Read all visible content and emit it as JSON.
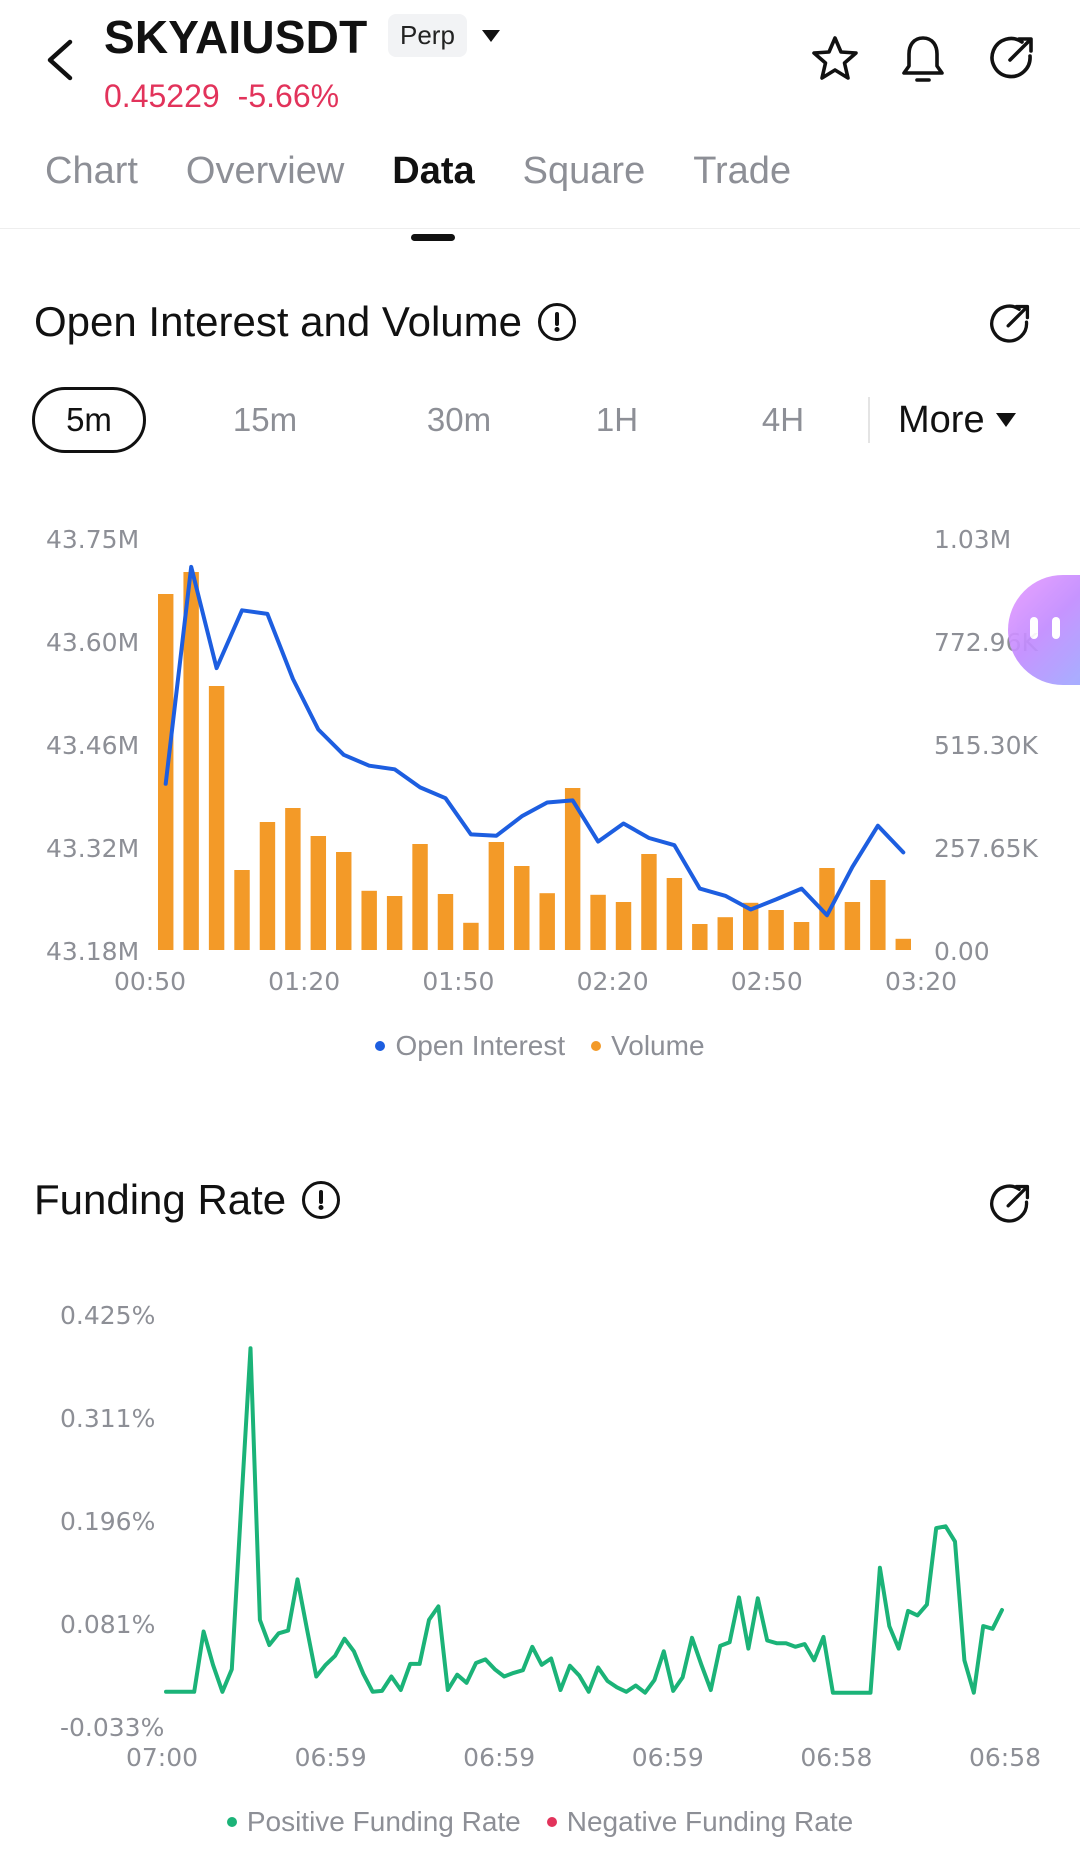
{
  "header": {
    "back_icon": "chevron-left-icon",
    "symbol": "SKYAIUSDT",
    "badge": "Perp",
    "badge_dropdown_icon": "caret-down-icon",
    "price": "0.45229",
    "change": "-5.66%",
    "price_color": "#e2335b",
    "actions": [
      "star-icon",
      "bell-icon",
      "share-icon"
    ]
  },
  "tabs": [
    {
      "label": "Chart"
    },
    {
      "label": "Overview"
    },
    {
      "label": "Data",
      "active": true
    },
    {
      "label": "Square"
    },
    {
      "label": "Trade"
    }
  ],
  "oi_section": {
    "title": "Open Interest and Volume",
    "intervals": [
      "5m",
      "15m",
      "30m",
      "1H",
      "4H"
    ],
    "active_interval": "5m",
    "more_label": "More"
  },
  "funding_section": {
    "title": "Funding Rate"
  },
  "chart_data": [
    {
      "type": "bar+line",
      "x_ticks": [
        "00:50",
        "01:20",
        "01:50",
        "02:20",
        "02:50",
        "03:20"
      ],
      "left_axis_ticks": [
        "43.75M",
        "43.60M",
        "43.46M",
        "43.32M",
        "43.18M"
      ],
      "right_axis_ticks": [
        "1.03M",
        "772.96K",
        "515.30K",
        "257.65K",
        "0.00"
      ],
      "left_ylim": [
        43.18,
        43.75
      ],
      "right_ylim": [
        0,
        1030000
      ],
      "legend": [
        "Open Interest",
        "Volume"
      ],
      "legend_placement": "bottom-center",
      "series_colors": {
        "Open Interest": "#1d5ee0",
        "Volume": "#f39a28"
      },
      "volume": [
        890000,
        945000,
        660000,
        200000,
        320000,
        355000,
        285000,
        245000,
        148000,
        135000,
        265000,
        140000,
        68000,
        270000,
        210000,
        142000,
        405000,
        138000,
        120000,
        240000,
        180000,
        65000,
        82000,
        118000,
        100000,
        70000,
        205000,
        120000,
        175000,
        28000
      ],
      "open_interest": [
        43.41,
        43.71,
        43.57,
        43.65,
        43.645,
        43.555,
        43.485,
        43.45,
        43.435,
        43.43,
        43.405,
        43.39,
        43.34,
        43.338,
        43.365,
        43.384,
        43.387,
        43.33,
        43.355,
        43.335,
        43.325,
        43.265,
        43.255,
        43.236,
        43.25,
        43.265,
        43.228,
        43.295,
        43.352,
        43.315
      ]
    },
    {
      "type": "line",
      "x_ticks": [
        "07:00",
        "06:59",
        "06:59",
        "06:59",
        "06:58",
        "06:58"
      ],
      "y_ticks": [
        "0.425%",
        "0.311%",
        "0.196%",
        "0.081%",
        "-0.033%"
      ],
      "ylim": [
        -0.033,
        0.425
      ],
      "legend": [
        "Positive Funding Rate",
        "Negative Funding Rate"
      ],
      "legend_placement": "bottom-center",
      "series_colors": {
        "Positive Funding Rate": "#1bb378",
        "Negative Funding Rate": "#e2335b"
      },
      "values": [
        0.005,
        0.005,
        0.005,
        0.005,
        0.072,
        0.035,
        0.005,
        0.03,
        0.21,
        0.387,
        0.085,
        0.057,
        0.07,
        0.073,
        0.13,
        0.075,
        0.022,
        0.035,
        0.045,
        0.064,
        0.05,
        0.025,
        0.005,
        0.006,
        0.022,
        0.007,
        0.036,
        0.036,
        0.085,
        0.1,
        0.007,
        0.024,
        0.015,
        0.037,
        0.041,
        0.03,
        0.022,
        0.026,
        0.029,
        0.055,
        0.035,
        0.042,
        0.007,
        0.034,
        0.023,
        0.005,
        0.032,
        0.017,
        0.01,
        0.005,
        0.012,
        0.004,
        0.018,
        0.05,
        0.006,
        0.021,
        0.065,
        0.035,
        0.007,
        0.056,
        0.06,
        0.11,
        0.053,
        0.109,
        0.062,
        0.059,
        0.059,
        0.055,
        0.058,
        0.04,
        0.066,
        0.004,
        0.004,
        0.004,
        0.004,
        0.004,
        0.143,
        0.078,
        0.053,
        0.095,
        0.09,
        0.102,
        0.187,
        0.189,
        0.172,
        0.04,
        0.004,
        0.078,
        0.075,
        0.096
      ]
    }
  ]
}
